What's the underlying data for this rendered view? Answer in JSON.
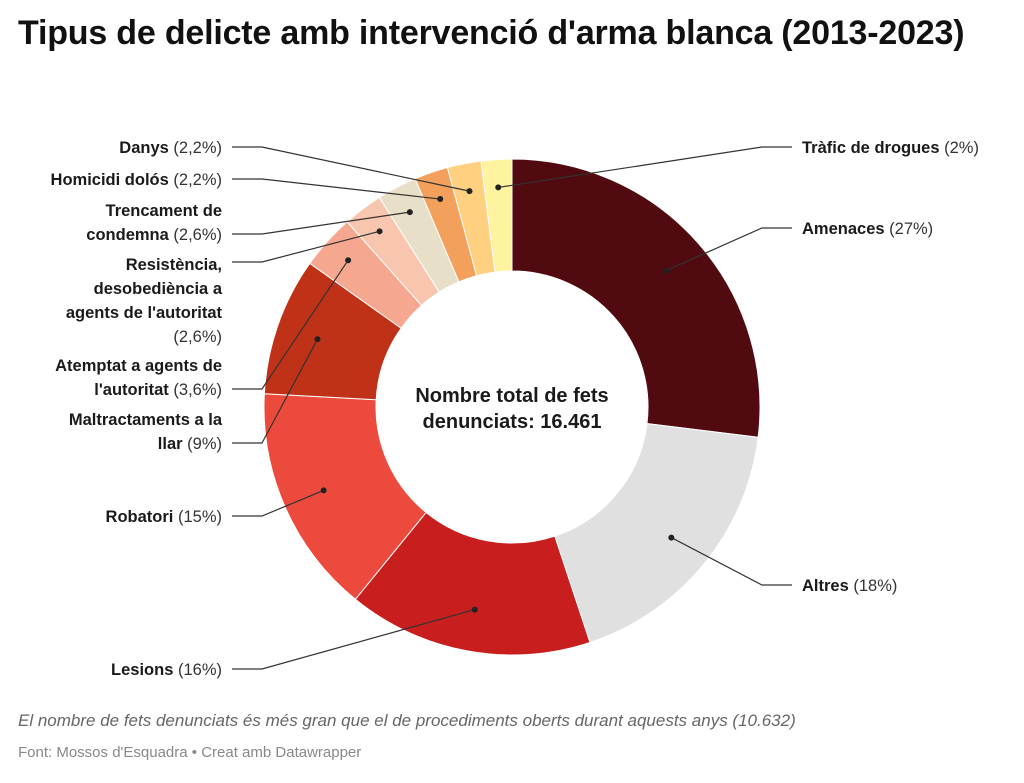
{
  "chart_data": {
    "type": "pie",
    "title": "Tipus de delicte amb intervenció d'arma blanca (2013-2023)",
    "center_text": [
      "Nombre total de fets",
      "denunciats: 16.461"
    ],
    "slices": [
      {
        "name": "Amenaces",
        "pct_label": "(27%)",
        "value": 27,
        "color": "#500a10"
      },
      {
        "name": "Altres",
        "pct_label": "(18%)",
        "value": 18,
        "color": "#e0e0e0"
      },
      {
        "name": "Lesions",
        "pct_label": "(16%)",
        "value": 16,
        "color": "#c81e1e"
      },
      {
        "name": "Robatori",
        "pct_label": "(15%)",
        "value": 15,
        "color": "#ec4a3c"
      },
      {
        "name": "Maltractaments a la llar",
        "pct_label": "(9%)",
        "value": 9,
        "color": "#bf3218"
      },
      {
        "name": "Atemptat a agents de l'autoritat",
        "pct_label": "(3,6%)",
        "value": 3.6,
        "color": "#f6a790"
      },
      {
        "name": "Resistència, desobediència a agents de l'autoritat",
        "pct_label": "(2,6%)",
        "value": 2.6,
        "color": "#f8c6ae"
      },
      {
        "name": "Trencament de condemna",
        "pct_label": "(2,6%)",
        "value": 2.6,
        "color": "#e8dfc8"
      },
      {
        "name": "Homicidi dolós",
        "pct_label": "(2,2%)",
        "value": 2.2,
        "color": "#f2a05c"
      },
      {
        "name": "Danys",
        "pct_label": "(2,2%)",
        "value": 2.2,
        "color": "#ffd080"
      },
      {
        "name": "Tràfic de drogues",
        "pct_label": "(2%)",
        "value": 2,
        "color": "#fff3a0"
      }
    ]
  },
  "note": "El nombre de fets denunciats és més gran que el de procediments oberts durant aquests anys (10.632)",
  "source": "Font: Mossos d'Esquadra • Creat amb Datawrapper"
}
